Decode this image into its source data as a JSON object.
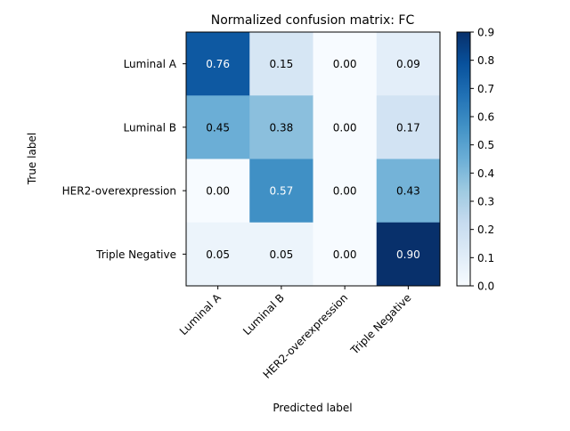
{
  "chart_data": {
    "type": "heatmap",
    "title": "Normalized confusion matrix: FC",
    "xlabel": "Predicted label",
    "ylabel": "True label",
    "x_categories": [
      "Luminal A",
      "Luminal B",
      "HER2-overexpression",
      "Triple Negative"
    ],
    "y_categories": [
      "Luminal A",
      "Luminal B",
      "HER2-overexpression",
      "Triple Negative"
    ],
    "values": [
      [
        0.76,
        0.15,
        0.0,
        0.09
      ],
      [
        0.45,
        0.38,
        0.0,
        0.17
      ],
      [
        0.0,
        0.57,
        0.0,
        0.43
      ],
      [
        0.05,
        0.05,
        0.0,
        0.9
      ]
    ],
    "value_labels": [
      [
        "0.76",
        "0.15",
        "0.00",
        "0.09"
      ],
      [
        "0.45",
        "0.38",
        "0.00",
        "0.17"
      ],
      [
        "0.00",
        "0.57",
        "0.00",
        "0.43"
      ],
      [
        "0.05",
        "0.05",
        "0.00",
        "0.90"
      ]
    ],
    "colorbar": {
      "range": [
        0.0,
        0.9
      ],
      "ticks": [
        0.0,
        0.1,
        0.2,
        0.3,
        0.4,
        0.5,
        0.6,
        0.7,
        0.8,
        0.9
      ],
      "tick_labels": [
        "0.0",
        "0.1",
        "0.2",
        "0.3",
        "0.4",
        "0.5",
        "0.6",
        "0.7",
        "0.8",
        "0.9"
      ],
      "colormap": "Blues"
    },
    "grid": false
  }
}
